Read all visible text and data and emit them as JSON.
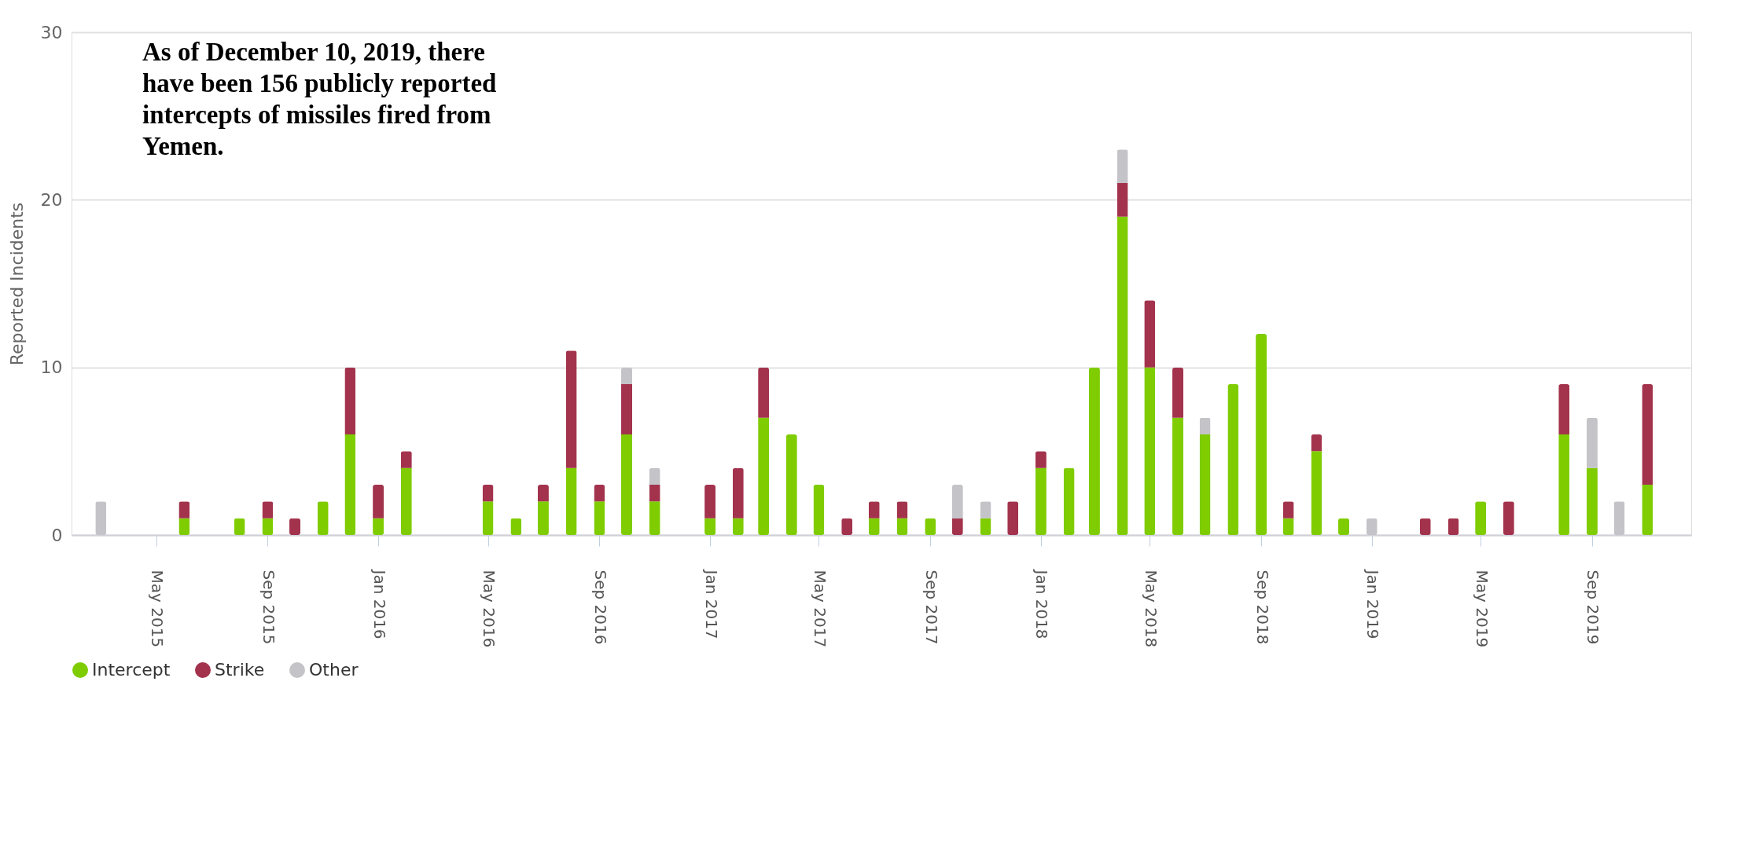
{
  "chart_data": {
    "type": "bar",
    "stacked": true,
    "ylabel": "Reported Incidents",
    "annotations": [
      "As of December 10, 2019, there have been 156 publicly reported intercepts of missiles fired from Yemen."
    ],
    "x": [
      "2015-03",
      "2015-06",
      "2015-08",
      "2015-09",
      "2015-10",
      "2015-11",
      "2015-12",
      "2016-01",
      "2016-02",
      "2016-05",
      "2016-06",
      "2016-07",
      "2016-08",
      "2016-09",
      "2016-10",
      "2016-11",
      "2017-01",
      "2017-02",
      "2017-03",
      "2017-04",
      "2017-05",
      "2017-06",
      "2017-07",
      "2017-08",
      "2017-09",
      "2017-10",
      "2017-11",
      "2017-12",
      "2018-01",
      "2018-02",
      "2018-03",
      "2018-04",
      "2018-05",
      "2018-06",
      "2018-07",
      "2018-08",
      "2018-09",
      "2018-10",
      "2018-11",
      "2018-12",
      "2019-01",
      "2019-03",
      "2019-04",
      "2019-05",
      "2019-06",
      "2019-08",
      "2019-09",
      "2019-10",
      "2019-11"
    ],
    "series": [
      {
        "name": "Intercept",
        "color": "#7fcc00",
        "values": [
          null,
          1,
          1,
          1,
          null,
          2,
          6,
          1,
          4,
          2,
          1,
          2,
          4,
          2,
          6,
          2,
          1,
          1,
          7,
          6,
          3,
          null,
          1,
          1,
          1,
          null,
          1,
          null,
          4,
          4,
          10,
          19,
          10,
          7,
          6,
          9,
          12,
          1,
          5,
          1,
          null,
          null,
          null,
          2,
          null,
          6,
          4,
          null,
          3
        ]
      },
      {
        "name": "Strike",
        "color": "#a3334d",
        "values": [
          null,
          1,
          null,
          1,
          1,
          null,
          4,
          2,
          1,
          1,
          null,
          1,
          7,
          1,
          3,
          1,
          2,
          3,
          3,
          null,
          null,
          1,
          1,
          1,
          null,
          1,
          null,
          2,
          1,
          null,
          null,
          2,
          4,
          3,
          null,
          null,
          null,
          1,
          1,
          null,
          null,
          1,
          1,
          null,
          2,
          3,
          null,
          null,
          6
        ]
      },
      {
        "name": "Other",
        "color": "#c3c3c8",
        "values": [
          2,
          null,
          null,
          null,
          null,
          null,
          null,
          null,
          null,
          null,
          null,
          null,
          null,
          null,
          1,
          1,
          null,
          null,
          null,
          null,
          null,
          null,
          null,
          null,
          null,
          2,
          1,
          null,
          null,
          null,
          null,
          2,
          null,
          null,
          1,
          null,
          null,
          null,
          null,
          null,
          1,
          null,
          null,
          null,
          null,
          null,
          3,
          2,
          null
        ]
      }
    ],
    "xlim": [
      "2015-02-01",
      "2019-12-15"
    ],
    "xticks": [
      {
        "value": "2015-05",
        "label": "May 2015"
      },
      {
        "value": "2015-09",
        "label": "Sep 2015"
      },
      {
        "value": "2016-01",
        "label": "Jan 2016"
      },
      {
        "value": "2016-05",
        "label": "May 2016"
      },
      {
        "value": "2016-09",
        "label": "Sep 2016"
      },
      {
        "value": "2017-01",
        "label": "Jan 2017"
      },
      {
        "value": "2017-05",
        "label": "May 2017"
      },
      {
        "value": "2017-09",
        "label": "Sep 2017"
      },
      {
        "value": "2018-01",
        "label": "Jan 2018"
      },
      {
        "value": "2018-05",
        "label": "May 2018"
      },
      {
        "value": "2018-09",
        "label": "Sep 2018"
      },
      {
        "value": "2019-01",
        "label": "Jan 2019"
      },
      {
        "value": "2019-05",
        "label": "May 2019"
      },
      {
        "value": "2019-09",
        "label": "Sep 2019"
      }
    ],
    "ylim": [
      0,
      30
    ],
    "yticks": [
      0,
      10,
      20,
      30
    ],
    "grid": "y",
    "legend": "bottom"
  }
}
